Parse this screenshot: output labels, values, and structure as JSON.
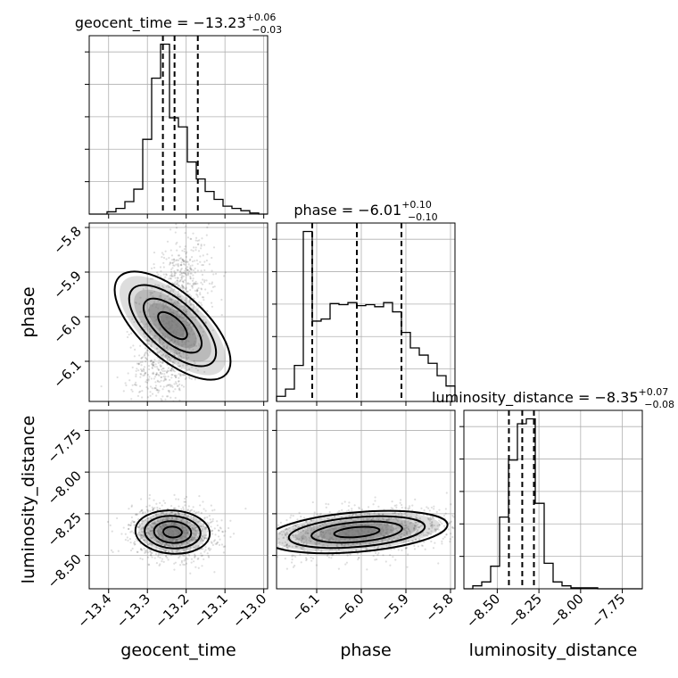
{
  "chart_data": {
    "type": "corner",
    "parameters": [
      "geocent_time",
      "phase",
      "luminosity_distance"
    ],
    "axis_labels": {
      "x": [
        "geocent_time",
        "phase",
        "luminosity_distance"
      ],
      "y": [
        "phase",
        "luminosity_distance"
      ]
    },
    "titles": [
      {
        "name": "geocent_time = ",
        "median": "−13.23",
        "plus": "+0.06",
        "minus": "−0.03"
      },
      {
        "name": "phase = ",
        "median": "−6.01",
        "plus": "+0.10",
        "minus": "−0.10"
      },
      {
        "name": "luminosity_distance = ",
        "median": "−8.35",
        "plus": "+0.07",
        "minus": "−0.08"
      }
    ],
    "ranges": {
      "geocent_time": [
        -13.45,
        -12.99
      ],
      "phase": [
        -6.19,
        -5.79
      ],
      "luminosity_distance": [
        -8.7,
        -7.63
      ]
    },
    "ticks": {
      "geocent_time": {
        "values": [
          -13.4,
          -13.3,
          -13.2,
          -13.1,
          -13.0
        ],
        "labels": [
          "−13.4",
          "−13.3",
          "−13.2",
          "−13.1",
          "−13.0"
        ]
      },
      "phase": {
        "values": [
          -6.1,
          -6.0,
          -5.9,
          -5.8
        ],
        "labels": [
          "−6.1",
          "−6.0",
          "−5.9",
          "−5.8"
        ]
      },
      "luminosity_distance": {
        "values": [
          -8.5,
          -8.25,
          -8.0,
          -7.75
        ],
        "labels": [
          "−8.50",
          "−8.25",
          "−8.00",
          "−7.75"
        ]
      }
    },
    "quantiles": {
      "geocent_time": [
        -13.26,
        -13.23,
        -13.17
      ],
      "phase": [
        -6.11,
        -6.01,
        -5.91
      ],
      "luminosity_distance": [
        -8.43,
        -8.35,
        -8.28
      ]
    },
    "histograms": {
      "geocent_time": {
        "edges": [
          -13.45,
          -13.427,
          -13.404,
          -13.381,
          -13.358,
          -13.335,
          -13.312,
          -13.289,
          -13.266,
          -13.243,
          -13.22,
          -13.197,
          -13.174,
          -13.151,
          -13.128,
          -13.105,
          -13.082,
          -13.059,
          -13.036,
          -13.013,
          -12.99
        ],
        "counts": [
          0,
          0,
          2,
          5,
          11,
          22,
          66,
          120,
          150,
          85,
          77,
          46,
          31,
          20,
          13,
          7,
          5,
          3,
          1,
          0
        ]
      },
      "phase": {
        "edges": [
          -6.19,
          -6.17,
          -6.15,
          -6.13,
          -6.11,
          -6.09,
          -6.07,
          -6.05,
          -6.03,
          -6.01,
          -5.99,
          -5.97,
          -5.95,
          -5.93,
          -5.91,
          -5.89,
          -5.87,
          -5.85,
          -5.83,
          -5.81,
          -5.79
        ],
        "counts": [
          5,
          12,
          35,
          165,
          78,
          80,
          95,
          94,
          96,
          93,
          94,
          92,
          96,
          87,
          67,
          52,
          45,
          37,
          25,
          15
        ]
      },
      "luminosity_distance": {
        "edges": [
          -8.7,
          -8.6465,
          -8.593,
          -8.5395,
          -8.486,
          -8.4325,
          -8.379,
          -8.3255,
          -8.272,
          -8.2185,
          -8.165,
          -8.1115,
          -8.058,
          -8.0045,
          -7.951,
          -7.8975,
          -7.844,
          -7.7905,
          -7.737,
          -7.6835,
          -7.63
        ],
        "counts": [
          0,
          3,
          7,
          23,
          73,
          131,
          168,
          173,
          87,
          26,
          7,
          3,
          1,
          1,
          1,
          0,
          0,
          0,
          0,
          0
        ]
      }
    },
    "grid": true
  }
}
